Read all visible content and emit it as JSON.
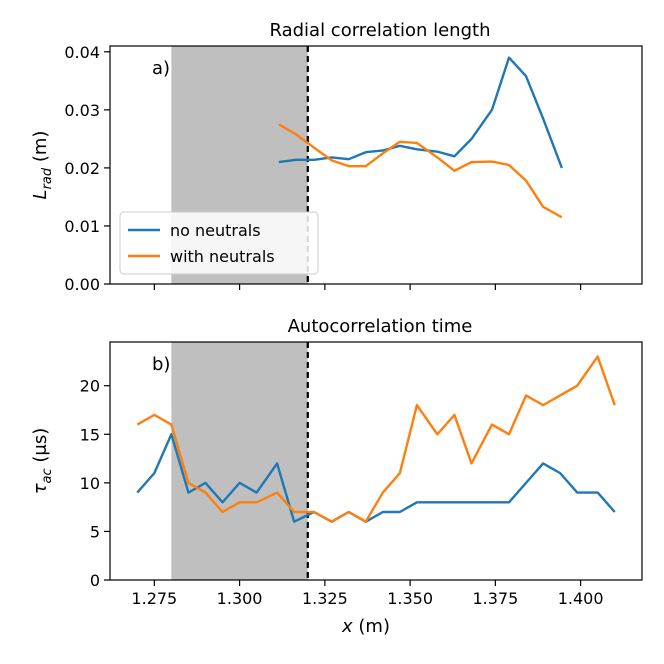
{
  "chart_data": [
    {
      "type": "line",
      "panel_label": "a)",
      "title": "Radial correlation length",
      "xlabel": "",
      "ylabel_main": "L",
      "ylabel_sub": "rad",
      "ylabel_unit": " (m)",
      "xlim": [
        1.262,
        1.418
      ],
      "ylim": [
        0.0,
        0.041
      ],
      "yticks": [
        0.0,
        0.01,
        0.02,
        0.03,
        0.04
      ],
      "ytick_labels": [
        "0.00",
        "0.01",
        "0.02",
        "0.03",
        "0.04"
      ],
      "xticks": [
        1.275,
        1.3,
        1.325,
        1.35,
        1.375,
        1.4
      ],
      "xtick_labels": [],
      "shaded_region": [
        1.28,
        1.32
      ],
      "vline": 1.32,
      "legend": {
        "placement": "lower-left",
        "entries": [
          "no neutrals",
          "with neutrals"
        ]
      },
      "series": [
        {
          "name": "no neutrals",
          "color": "#1f77b4",
          "x": [
            1.3115,
            1.3165,
            1.3218,
            1.327,
            1.332,
            1.337,
            1.342,
            1.347,
            1.352,
            1.358,
            1.363,
            1.368,
            1.374,
            1.379,
            1.384,
            1.389,
            1.3945
          ],
          "y": [
            0.021,
            0.0214,
            0.0214,
            0.0218,
            0.0215,
            0.0227,
            0.023,
            0.0238,
            0.0232,
            0.0228,
            0.022,
            0.025,
            0.03,
            0.039,
            0.0358,
            0.0285,
            0.02
          ]
        },
        {
          "name": "with neutrals",
          "color": "#ff7f0e",
          "x": [
            1.3115,
            1.3165,
            1.3218,
            1.327,
            1.332,
            1.337,
            1.342,
            1.347,
            1.352,
            1.358,
            1.363,
            1.368,
            1.374,
            1.379,
            1.384,
            1.389,
            1.3945
          ],
          "y": [
            0.0275,
            0.0258,
            0.0235,
            0.0213,
            0.0203,
            0.0203,
            0.0225,
            0.0245,
            0.0243,
            0.0218,
            0.0195,
            0.021,
            0.0211,
            0.0205,
            0.0178,
            0.0133,
            0.0115
          ]
        }
      ]
    },
    {
      "type": "line",
      "panel_label": "b)",
      "title": "Autocorrelation time",
      "xlabel_main": "x",
      "xlabel_unit": " (m)",
      "ylabel_main": "τ",
      "ylabel_sub": "ac",
      "ylabel_unit": " (μs)",
      "xlim": [
        1.262,
        1.418
      ],
      "ylim": [
        0,
        24.5
      ],
      "yticks": [
        0,
        5,
        10,
        15,
        20
      ],
      "ytick_labels": [
        "0",
        "5",
        "10",
        "15",
        "20"
      ],
      "xticks": [
        1.275,
        1.3,
        1.325,
        1.35,
        1.375,
        1.4
      ],
      "xtick_labels": [
        "1.275",
        "1.300",
        "1.325",
        "1.350",
        "1.375",
        "1.400"
      ],
      "shaded_region": [
        1.28,
        1.32
      ],
      "vline": 1.32,
      "series": [
        {
          "name": "no neutrals",
          "color": "#1f77b4",
          "x": [
            1.27,
            1.275,
            1.28,
            1.285,
            1.29,
            1.295,
            1.3,
            1.305,
            1.311,
            1.316,
            1.3218,
            1.327,
            1.332,
            1.337,
            1.342,
            1.347,
            1.352,
            1.358,
            1.363,
            1.368,
            1.374,
            1.379,
            1.384,
            1.389,
            1.394,
            1.399,
            1.405,
            1.41
          ],
          "y": [
            9,
            11,
            15,
            9,
            10,
            8,
            10,
            9,
            12,
            6,
            7,
            6,
            7,
            6,
            7,
            7,
            8,
            8,
            8,
            8,
            8,
            8,
            10,
            12,
            11,
            9,
            9,
            7
          ]
        },
        {
          "name": "with neutrals",
          "color": "#ff7f0e",
          "x": [
            1.27,
            1.275,
            1.28,
            1.285,
            1.29,
            1.295,
            1.3,
            1.305,
            1.311,
            1.316,
            1.3218,
            1.327,
            1.332,
            1.337,
            1.342,
            1.347,
            1.352,
            1.358,
            1.363,
            1.368,
            1.374,
            1.379,
            1.384,
            1.389,
            1.394,
            1.399,
            1.405,
            1.41
          ],
          "y": [
            16,
            17,
            16,
            10,
            9,
            7,
            8,
            8,
            9,
            7,
            7,
            6,
            7,
            6,
            9,
            11,
            18,
            15,
            17,
            12,
            16,
            15,
            19,
            18,
            19,
            20,
            23,
            18
          ]
        }
      ]
    }
  ]
}
